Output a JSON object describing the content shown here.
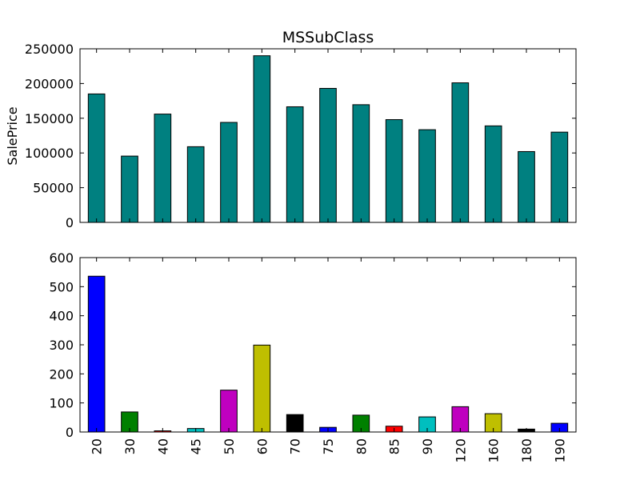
{
  "chart_data": [
    {
      "type": "bar",
      "title": "MSSubClass",
      "xlabel": "",
      "ylabel": "SalePrice",
      "ylim": [
        0,
        250000
      ],
      "yticks": [
        0,
        50000,
        100000,
        150000,
        200000,
        250000
      ],
      "categories": [
        "20",
        "30",
        "40",
        "45",
        "50",
        "60",
        "70",
        "75",
        "80",
        "85",
        "90",
        "120",
        "160",
        "180",
        "190"
      ],
      "values": [
        185000,
        95500,
        156000,
        109000,
        144000,
        240000,
        166500,
        193000,
        169500,
        148000,
        133500,
        201000,
        139000,
        102000,
        130000
      ],
      "colors": [
        "#008080"
      ],
      "show_xticklabels": false
    },
    {
      "type": "bar",
      "title": "",
      "xlabel": "",
      "ylabel": "",
      "ylim": [
        0,
        600
      ],
      "yticks": [
        0,
        100,
        200,
        300,
        400,
        500,
        600
      ],
      "categories": [
        "20",
        "30",
        "40",
        "45",
        "50",
        "60",
        "70",
        "75",
        "80",
        "85",
        "90",
        "120",
        "160",
        "180",
        "190"
      ],
      "values": [
        536,
        69,
        4,
        12,
        144,
        299,
        60,
        16,
        58,
        20,
        52,
        87,
        63,
        10,
        30
      ],
      "colors": [
        "#0000ff",
        "#008000",
        "#ff0000",
        "#00bfbf",
        "#bf00bf",
        "#bfbf00",
        "#000000"
      ],
      "show_xticklabels": true
    }
  ]
}
